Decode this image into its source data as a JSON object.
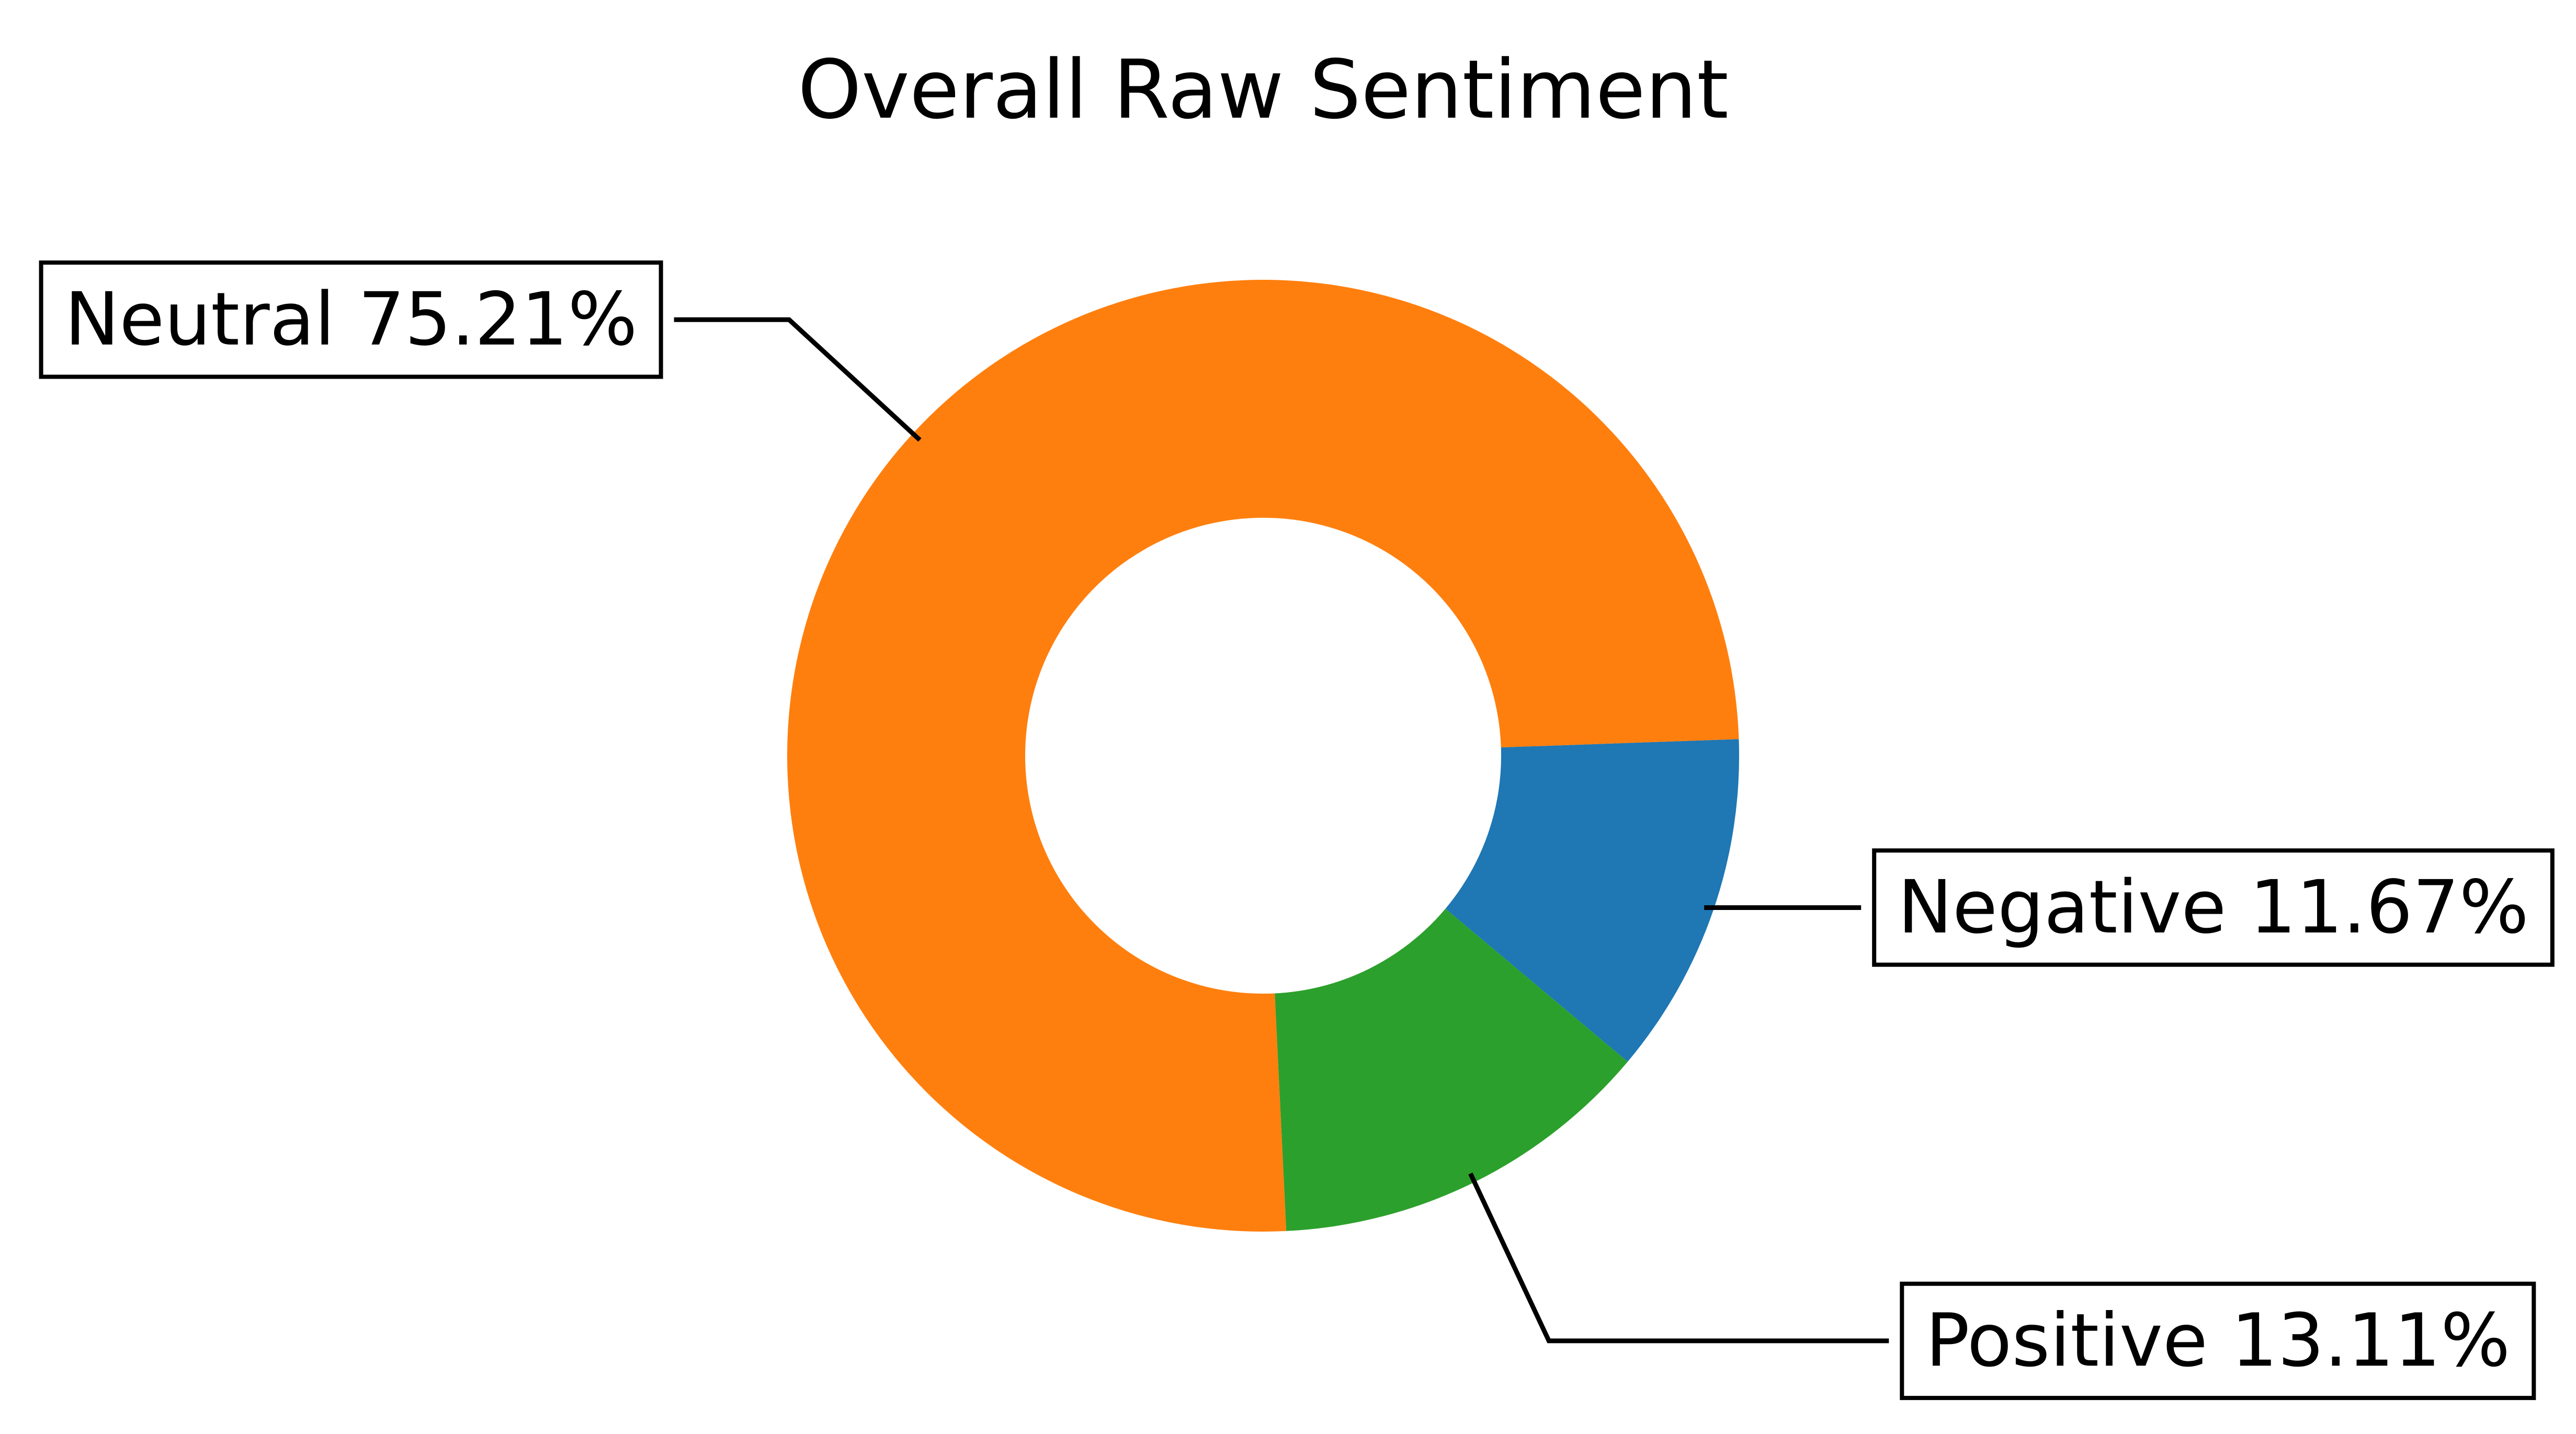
{
  "chart_data": {
    "type": "pie",
    "title": "Overall Raw Sentiment",
    "donut": true,
    "categories": [
      "Negative",
      "Positive",
      "Neutral"
    ],
    "values": [
      11.67,
      13.11,
      75.21
    ],
    "labels": [
      "Negative 11.67%",
      "Positive 13.11%",
      "Neutral 75.21%"
    ],
    "colors": [
      "#1f77b4",
      "#2ca02c",
      "#ff7f0e"
    ],
    "start_angle_deg": 2,
    "direction": "clockwise",
    "legend": "none"
  }
}
